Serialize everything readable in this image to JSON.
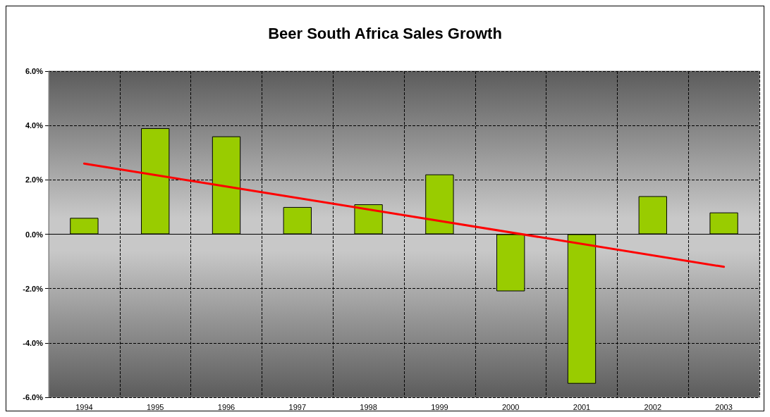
{
  "chart_data": {
    "type": "bar",
    "title": "Beer South Africa Sales Growth",
    "categories": [
      "1994",
      "1995",
      "1996",
      "1997",
      "1998",
      "1999",
      "2000",
      "2001",
      "2002",
      "2003"
    ],
    "series": [
      {
        "color": "#99cc00",
        "values": [
          0.6,
          3.9,
          3.6,
          1.0,
          1.1,
          2.2,
          -2.1,
          -5.5,
          1.4,
          0.8
        ]
      },
      {
        "type": "line",
        "color": "#ff0000",
        "values": [
          2.6,
          null,
          null,
          null,
          null,
          null,
          null,
          null,
          null,
          -1.2
        ],
        "marker": "none"
      }
    ],
    "ylim": [
      -6,
      6
    ],
    "yticks": [
      {
        "value": -6,
        "label": "-6.0%"
      },
      {
        "value": -4,
        "label": "-4.0%"
      },
      {
        "value": -2,
        "label": "-2.0%"
      },
      {
        "value": 0,
        "label": "0.0%"
      },
      {
        "value": 2,
        "label": "2.0%"
      },
      {
        "value": 4,
        "label": "4.0%"
      },
      {
        "value": 6,
        "label": "6.0%"
      }
    ],
    "grid": true
  }
}
